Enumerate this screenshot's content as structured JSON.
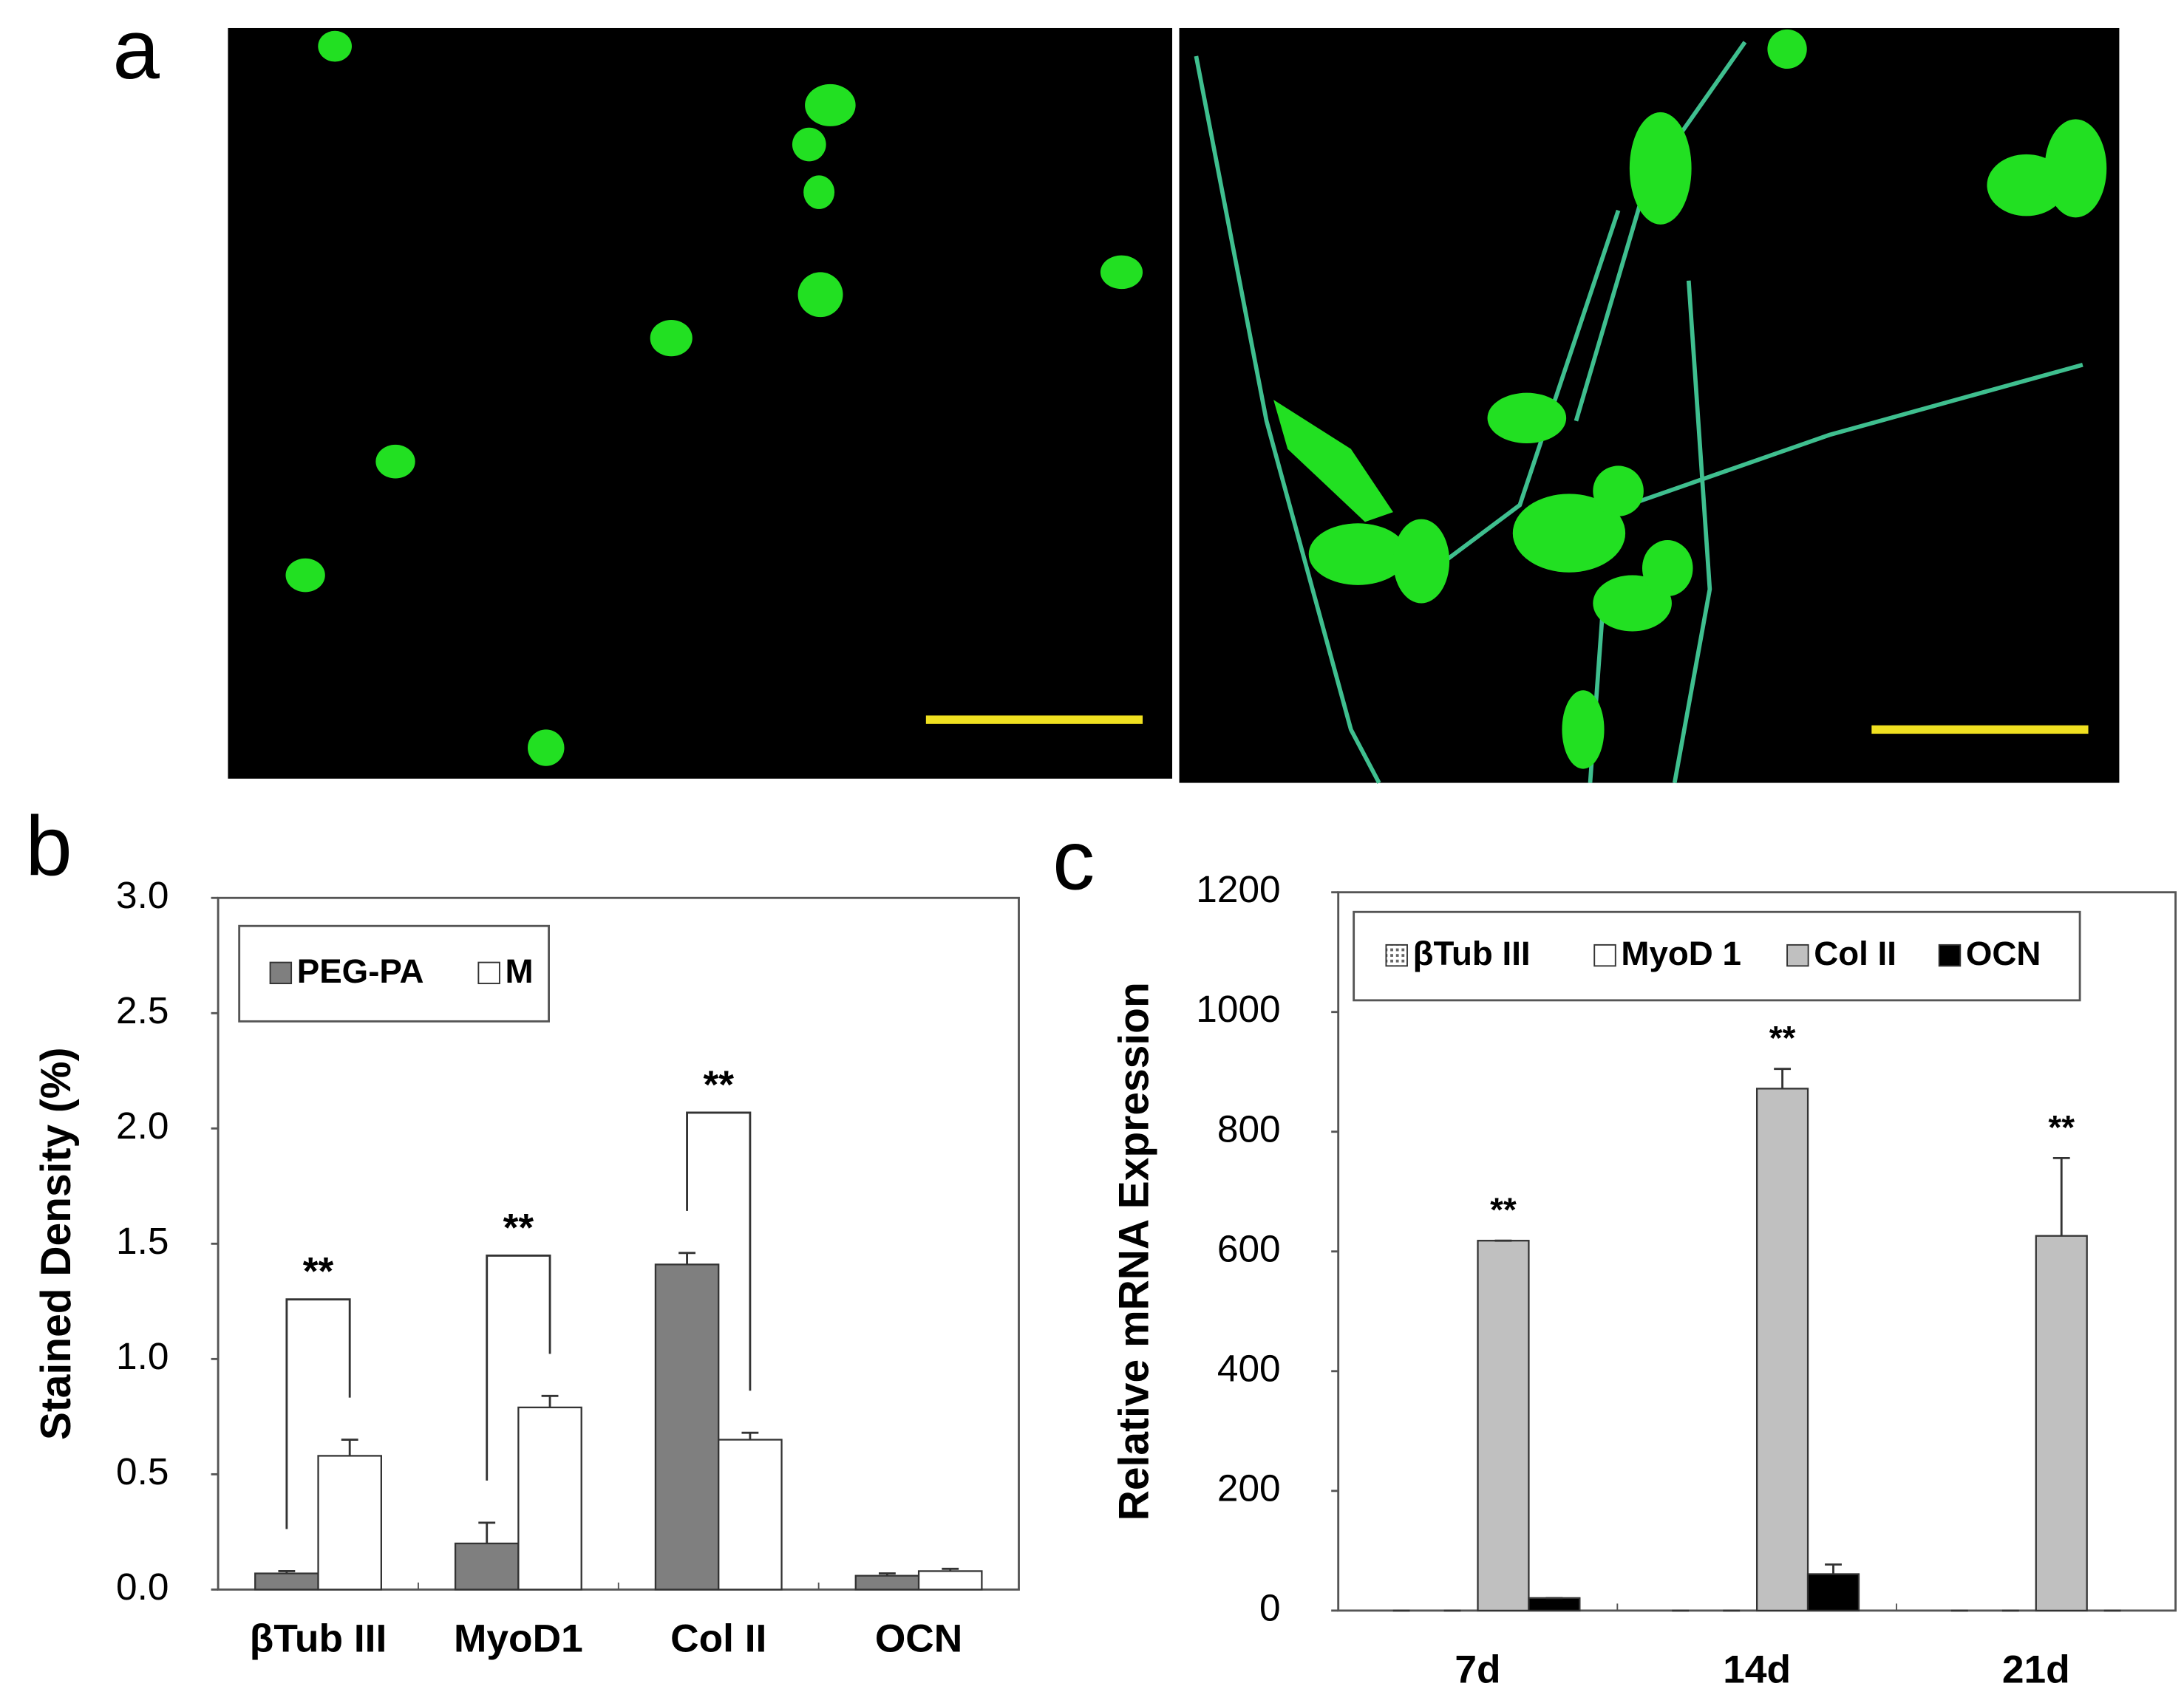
{
  "panel_labels": [
    "a",
    "b",
    "c"
  ],
  "chart_data": [
    {
      "type": "bar",
      "ylabel": "Stained Density (%)",
      "categories": [
        "βTub III",
        "MyoD1",
        "Col II",
        "OCN"
      ],
      "series": [
        {
          "name": "PEG-PA",
          "color": "#7f7f7f",
          "values": [
            0.07,
            0.2,
            1.41,
            0.06
          ],
          "errors": [
            0.01,
            0.09,
            0.05,
            0.01
          ]
        },
        {
          "name": "M",
          "color": "#ffffff",
          "values": [
            0.58,
            0.79,
            0.65,
            0.08
          ],
          "errors": [
            0.07,
            0.05,
            0.03,
            0.01
          ]
        }
      ],
      "ylim": [
        0,
        3
      ],
      "yticks": [
        {
          "value": 0,
          "label": "0.0"
        },
        {
          "value": 0.5,
          "label": "0.5"
        },
        {
          "value": 1,
          "label": "1.0"
        },
        {
          "value": 1.5,
          "label": "1.5"
        },
        {
          "value": 2,
          "label": "2.0"
        },
        {
          "value": 2.5,
          "label": "2.5"
        },
        {
          "value": 3,
          "label": "3.0"
        }
      ],
      "annotations": [
        "**",
        "**",
        "**"
      ],
      "legend": "upper left"
    },
    {
      "type": "bar",
      "ylabel": "Relative mRNA Expression",
      "categories": [
        "7d",
        "14d",
        "21d"
      ],
      "series": [
        {
          "name": "βTub III",
          "color": "#b0b0b0",
          "values": [
            0,
            0,
            0
          ],
          "errors": [
            0,
            0,
            0
          ]
        },
        {
          "name": "MyoD 1",
          "color": "#ffffff",
          "values": [
            0,
            0,
            0
          ],
          "errors": [
            0,
            0,
            0
          ]
        },
        {
          "name": "Col II",
          "color": "#c0c0c0",
          "values": [
            618,
            872,
            626
          ],
          "errors": [
            0,
            33,
            130
          ]
        },
        {
          "name": "OCN",
          "color": "#000000",
          "values": [
            21,
            61,
            0
          ],
          "errors": [
            0,
            16,
            0
          ]
        }
      ],
      "ylim": [
        0,
        1200
      ],
      "yticks": [
        0,
        200,
        400,
        600,
        800,
        1000,
        1200
      ],
      "annotations": [
        "**",
        "**",
        "**"
      ],
      "legend": "upper center"
    }
  ]
}
